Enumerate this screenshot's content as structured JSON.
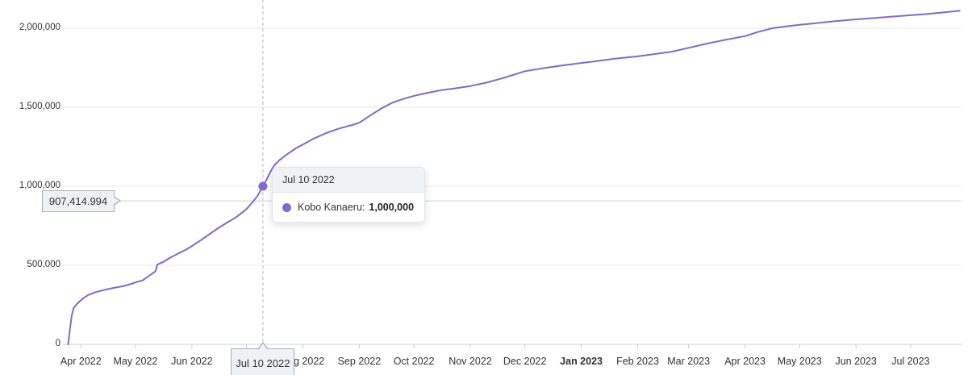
{
  "colors": {
    "series": "#8068d8",
    "grid": "#e8e8e8",
    "axis_line": "#ccd2d8",
    "tick": "#cccccc",
    "crosshair": "#cfcfcf",
    "label_box_bg": "#eef2f6",
    "label_box_border": "#a5afb8"
  },
  "crosshair": {
    "x_label": "Jul 10 2022",
    "y_label": "907,414.994",
    "y_value": 907414.994,
    "point": {
      "date": "2022-07-10",
      "value": 1000000
    }
  },
  "tooltip": {
    "header": "Jul 10 2022",
    "series_label": "Kobo Kanaeru:",
    "value": "1,000,000"
  },
  "chart_data": {
    "type": "line",
    "title": "",
    "legend": false,
    "grid": true,
    "series": [
      {
        "name": "Kobo Kanaeru",
        "color": "#8068d8",
        "points": [
          [
            "2022-03-25",
            0
          ],
          [
            "2022-03-26",
            100000
          ],
          [
            "2022-03-27",
            185000
          ],
          [
            "2022-03-28",
            230000
          ],
          [
            "2022-03-30",
            258000
          ],
          [
            "2022-04-02",
            290000
          ],
          [
            "2022-04-05",
            312000
          ],
          [
            "2022-04-09",
            330000
          ],
          [
            "2022-04-14",
            345000
          ],
          [
            "2022-04-19",
            357000
          ],
          [
            "2022-04-24",
            368000
          ],
          [
            "2022-04-28",
            380000
          ],
          [
            "2022-05-01",
            392000
          ],
          [
            "2022-05-05",
            405000
          ],
          [
            "2022-05-09",
            438000
          ],
          [
            "2022-05-12",
            462000
          ],
          [
            "2022-05-13",
            505000
          ],
          [
            "2022-05-16",
            520000
          ],
          [
            "2022-05-20",
            548000
          ],
          [
            "2022-05-25",
            578000
          ],
          [
            "2022-05-29",
            600000
          ],
          [
            "2022-06-01",
            622000
          ],
          [
            "2022-06-05",
            652000
          ],
          [
            "2022-06-10",
            692000
          ],
          [
            "2022-06-15",
            732000
          ],
          [
            "2022-06-20",
            768000
          ],
          [
            "2022-06-25",
            802000
          ],
          [
            "2022-06-28",
            828000
          ],
          [
            "2022-07-01",
            856000
          ],
          [
            "2022-07-04",
            895000
          ],
          [
            "2022-07-07",
            938000
          ],
          [
            "2022-07-10",
            1000000
          ],
          [
            "2022-07-12",
            1042000
          ],
          [
            "2022-07-14",
            1088000
          ],
          [
            "2022-07-16",
            1128000
          ],
          [
            "2022-07-19",
            1165000
          ],
          [
            "2022-07-23",
            1200000
          ],
          [
            "2022-07-28",
            1240000
          ],
          [
            "2022-08-01",
            1264000
          ],
          [
            "2022-08-07",
            1302000
          ],
          [
            "2022-08-14",
            1338000
          ],
          [
            "2022-08-21",
            1366000
          ],
          [
            "2022-08-28",
            1388000
          ],
          [
            "2022-09-01",
            1402000
          ],
          [
            "2022-09-07",
            1448000
          ],
          [
            "2022-09-13",
            1492000
          ],
          [
            "2022-09-19",
            1528000
          ],
          [
            "2022-09-25",
            1552000
          ],
          [
            "2022-10-01",
            1572000
          ],
          [
            "2022-10-08",
            1590000
          ],
          [
            "2022-10-16",
            1608000
          ],
          [
            "2022-10-24",
            1620000
          ],
          [
            "2022-11-01",
            1634000
          ],
          [
            "2022-11-10",
            1656000
          ],
          [
            "2022-11-20",
            1688000
          ],
          [
            "2022-12-01",
            1728000
          ],
          [
            "2022-12-10",
            1745000
          ],
          [
            "2022-12-20",
            1762000
          ],
          [
            "2023-01-01",
            1780000
          ],
          [
            "2023-01-10",
            1793000
          ],
          [
            "2023-01-20",
            1808000
          ],
          [
            "2023-02-01",
            1822000
          ],
          [
            "2023-02-10",
            1836000
          ],
          [
            "2023-02-20",
            1852000
          ],
          [
            "2023-03-01",
            1876000
          ],
          [
            "2023-03-10",
            1900000
          ],
          [
            "2023-03-20",
            1924000
          ],
          [
            "2023-04-01",
            1950000
          ],
          [
            "2023-04-08",
            1976000
          ],
          [
            "2023-04-16",
            2000000
          ],
          [
            "2023-04-24",
            2012000
          ],
          [
            "2023-05-01",
            2022000
          ],
          [
            "2023-05-10",
            2032000
          ],
          [
            "2023-05-20",
            2044000
          ],
          [
            "2023-06-01",
            2056000
          ],
          [
            "2023-06-10",
            2064000
          ],
          [
            "2023-06-20",
            2073000
          ],
          [
            "2023-07-01",
            2082000
          ],
          [
            "2023-07-10",
            2090000
          ],
          [
            "2023-07-19",
            2100000
          ],
          [
            "2023-07-28",
            2110000
          ]
        ]
      }
    ],
    "x_axis": {
      "range": [
        "2022-03-23",
        "2023-07-29"
      ],
      "ticks": [
        {
          "date": "2022-04-01",
          "label": "Apr 2022"
        },
        {
          "date": "2022-05-01",
          "label": "May 2022"
        },
        {
          "date": "2022-06-01",
          "label": "Jun 2022"
        },
        {
          "date": "2022-07-01",
          "label": ""
        },
        {
          "date": "2022-08-01",
          "label": "Aug 2022"
        },
        {
          "date": "2022-09-01",
          "label": "Sep 2022"
        },
        {
          "date": "2022-10-01",
          "label": "Oct 2022"
        },
        {
          "date": "2022-11-01",
          "label": "Nov 2022"
        },
        {
          "date": "2022-12-01",
          "label": "Dec 2022"
        },
        {
          "date": "2023-01-01",
          "label": "Jan 2023",
          "bold": true
        },
        {
          "date": "2023-02-01",
          "label": "Feb 2023"
        },
        {
          "date": "2023-03-01",
          "label": "Mar 2023"
        },
        {
          "date": "2023-04-01",
          "label": "Apr 2023"
        },
        {
          "date": "2023-05-01",
          "label": "May 2023"
        },
        {
          "date": "2023-06-01",
          "label": "Jun 2023"
        },
        {
          "date": "2023-07-01",
          "label": "Jul 2023"
        }
      ]
    },
    "y_axis": {
      "range": [
        0,
        2130000
      ],
      "ticks": [
        {
          "value": 0,
          "label": "0"
        },
        {
          "value": 500000,
          "label": "500,000"
        },
        {
          "value": 1000000,
          "label": "1,000,000"
        },
        {
          "value": 1500000,
          "label": "1,500,000"
        },
        {
          "value": 2000000,
          "label": "2,000,000"
        }
      ]
    }
  }
}
